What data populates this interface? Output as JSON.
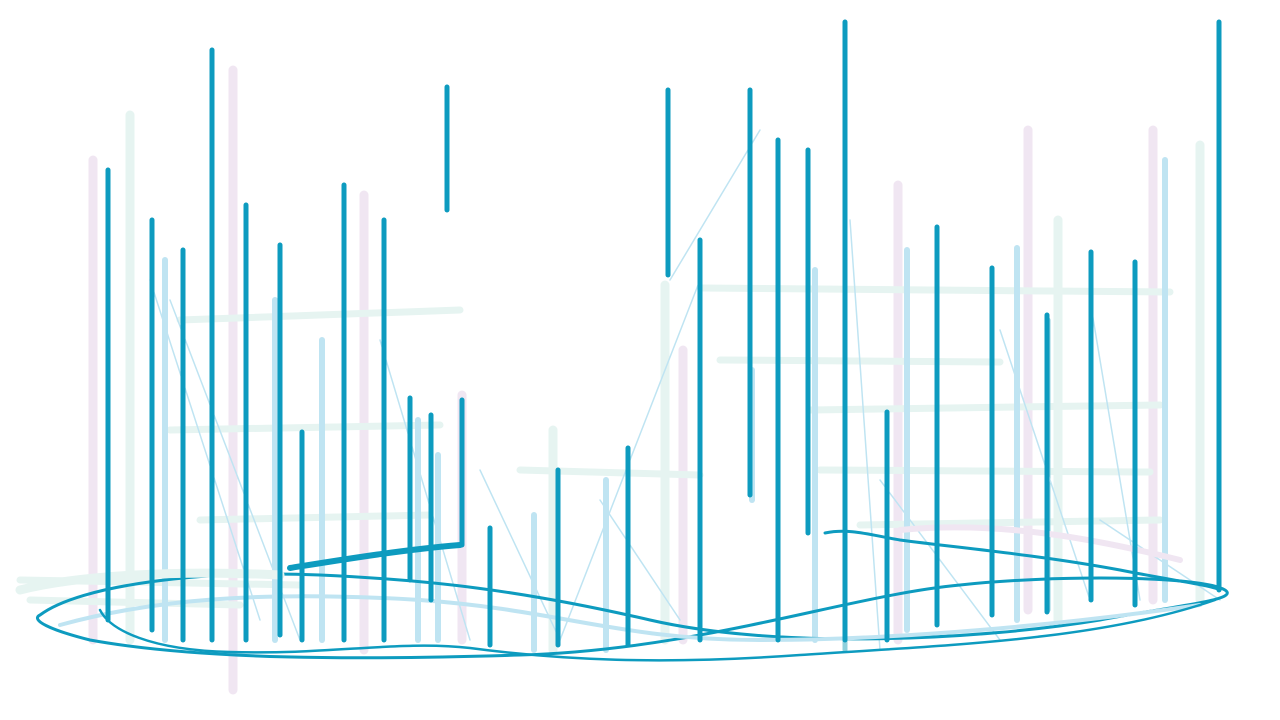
{
  "palette": {
    "background": "#ffffff",
    "primary_teal": "#0d9bbf",
    "light_blue": "#bfe4f2",
    "pale_mint": "#e6f4f1",
    "pale_lavender": "#f0e6f2",
    "mid_teal": "#8fd0dc"
  }
}
